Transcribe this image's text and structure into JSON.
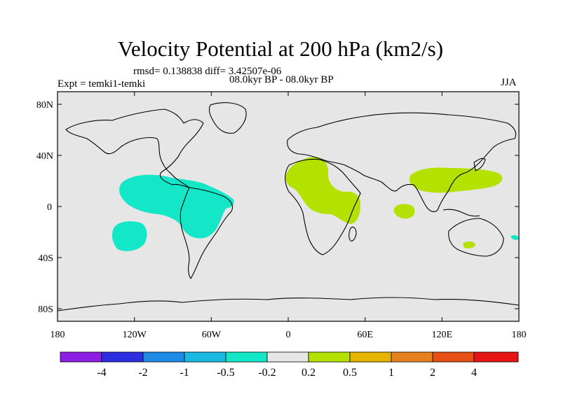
{
  "title": "Velocity Potential at 200 hPa (km2/s)",
  "stats_line": "rmsd= 0.138838 diff= 3.42507e-06",
  "period_line": "08.0kyr BP - 08.0kyr BP",
  "expt_line": "Expt = temki1-temki",
  "season": "JJA",
  "map": {
    "lat_labels": [
      "80N",
      "40N",
      "0",
      "40S",
      "80S"
    ],
    "lon_labels": [
      "180",
      "120W",
      "60W",
      "0",
      "60E",
      "120E",
      "180"
    ]
  },
  "colorbar": {
    "labels": [
      "-4",
      "-2",
      "-1",
      "-0.5",
      "-0.2",
      "0.2",
      "0.5",
      "1",
      "2",
      "4"
    ],
    "colors": [
      "#8c1ee6",
      "#2d2de1",
      "#1e8ce6",
      "#19b9e1",
      "#14e6c8",
      "#e6e6e6",
      "#b4e100",
      "#e6b400",
      "#e6821e",
      "#e65014",
      "#e61414"
    ]
  },
  "colors": {
    "ocean": "#e6e6e6",
    "negative_anomaly": "#14e6c8",
    "positive_anomaly": "#b4e100",
    "weak_positive": "#e6b400"
  }
}
